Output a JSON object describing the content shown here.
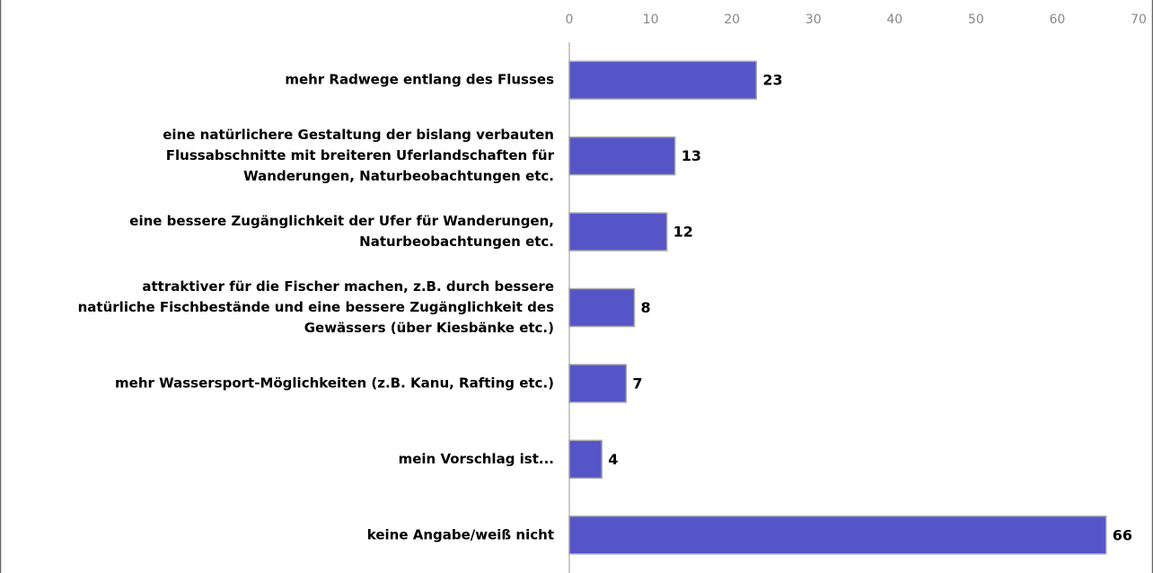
{
  "chart_data": {
    "type": "barh",
    "categories": [
      [
        "mehr Radwege entlang des Flusses"
      ],
      [
        "eine natürlichere Gestaltung der bislang verbauten",
        "Flussabschnitte mit breiteren Uferlandschaften für",
        "Wanderungen, Naturbeobachtungen etc."
      ],
      [
        "eine bessere Zugänglichkeit der Ufer für Wanderungen,",
        "Naturbeobachtungen etc."
      ],
      [
        "attraktiver für die Fischer machen, z.B. durch bessere",
        "natürliche Fischbestände und eine bessere Zugänglichkeit des",
        "Gewässers (über Kiesbänke etc.)"
      ],
      [
        "mehr Wassersport-Möglichkeiten (z.B. Kanu, Rafting etc.)"
      ],
      [
        "mein Vorschlag ist..."
      ],
      [
        "keine Angabe/weiß nicht"
      ]
    ],
    "values": [
      23,
      13,
      12,
      8,
      7,
      4,
      66
    ],
    "color": "#5555c8",
    "xlim": [
      0,
      70
    ],
    "xticks": [
      0,
      10,
      20,
      30,
      40,
      50,
      60,
      70
    ]
  }
}
